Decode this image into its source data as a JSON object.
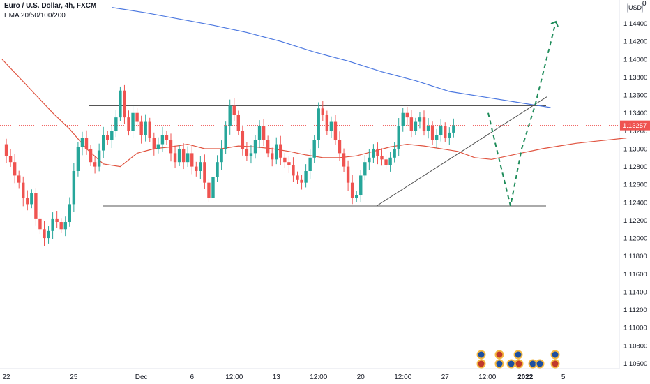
{
  "legend": {
    "symbol": "Euro / U.S. Dollar, 4h, FXCM",
    "indicator": "EMA 20/50/100/200"
  },
  "currency": "USD",
  "currency_suffix": "0",
  "last_price_label": "1.13257",
  "colors": {
    "up": "#26a69a",
    "down": "#ef5350",
    "ema_fast": "#e0533f",
    "ema_slow": "#4c78e0",
    "projection": "#1e8c5a",
    "last_price": "#ef5350",
    "lines": "#555555"
  },
  "chart_data": {
    "type": "candlestick",
    "timeframe": "4h",
    "y_ticks": [
      "1.14400",
      "1.14200",
      "1.14000",
      "1.13800",
      "1.13600",
      "1.13400",
      "1.13200",
      "1.13000",
      "1.12800",
      "1.12600",
      "1.12400",
      "1.12200",
      "1.12000",
      "1.11800",
      "1.11600",
      "1.11400",
      "1.11200",
      "1.11000",
      "1.10800",
      "1.10600"
    ],
    "ylim": [
      1.1058,
      1.146
    ],
    "x_ticks": [
      {
        "label": "22",
        "bar": 1
      },
      {
        "label": "25",
        "bar": 17
      },
      {
        "label": "Dec",
        "bar": 33
      },
      {
        "label": "6",
        "bar": 45
      },
      {
        "label": "12:00",
        "bar": 55
      },
      {
        "label": "13",
        "bar": 65
      },
      {
        "label": "12:00",
        "bar": 75
      },
      {
        "label": "20",
        "bar": 85
      },
      {
        "label": "12:00",
        "bar": 95
      },
      {
        "label": "27",
        "bar": 105
      },
      {
        "label": "12:00",
        "bar": 115
      },
      {
        "label": "2022",
        "bar": 124
      },
      {
        "label": "5",
        "bar": 133
      }
    ],
    "close_path": [
      1.1305,
      1.1292,
      1.1285,
      1.127,
      1.1262,
      1.1245,
      1.1238,
      1.125,
      1.1222,
      1.121,
      1.12,
      1.1208,
      1.1222,
      1.1218,
      1.121,
      1.1218,
      1.1238,
      1.1275,
      1.1302,
      1.1312,
      1.13,
      1.1285,
      1.128,
      1.1298,
      1.1315,
      1.131,
      1.132,
      1.1335,
      1.1365,
      1.1335,
      1.132,
      1.134,
      1.133,
      1.1315,
      1.133,
      1.1312,
      1.13,
      1.1305,
      1.1315,
      1.131,
      1.1295,
      1.1285,
      1.13,
      1.1285,
      1.1295,
      1.128,
      1.1275,
      1.1285,
      1.1262,
      1.1245,
      1.1268,
      1.1285,
      1.13,
      1.1325,
      1.1348,
      1.1338,
      1.132,
      1.13,
      1.1292,
      1.1295,
      1.131,
      1.1325,
      1.131,
      1.1295,
      1.1288,
      1.1305,
      1.129,
      1.1285,
      1.1282,
      1.127,
      1.1265,
      1.1262,
      1.1275,
      1.129,
      1.131,
      1.1345,
      1.1338,
      1.132,
      1.133,
      1.131,
      1.1295,
      1.128,
      1.1262,
      1.1245,
      1.1248,
      1.127,
      1.1285,
      1.129,
      1.13,
      1.1292,
      1.1288,
      1.1282,
      1.129,
      1.13,
      1.1325,
      1.134,
      1.1335,
      1.132,
      1.133,
      1.1335,
      1.132,
      1.1325,
      1.131,
      1.1315,
      1.1325,
      1.1312,
      1.1318,
      1.1326
    ],
    "series": [
      {
        "type": "ema",
        "role": "fast",
        "values": [
          1.14,
          1.138,
          1.136,
          1.134,
          1.1322,
          1.13,
          1.1283,
          1.128,
          1.1295,
          1.13,
          1.1302,
          1.1305,
          1.13,
          1.13,
          1.1303,
          1.1302,
          1.13,
          1.1297,
          1.1293,
          1.129,
          1.129,
          1.1292,
          1.1297,
          1.1302,
          1.1305,
          1.1303,
          1.13,
          1.1297,
          1.129,
          1.1288,
          1.1292,
          1.1296,
          1.13,
          1.1303,
          1.1306,
          1.1308,
          1.131,
          1.1312
        ],
        "x": [
          0,
          4,
          8,
          12,
          16,
          20,
          24,
          28,
          32,
          36,
          40,
          44,
          48,
          52,
          56,
          60,
          64,
          68,
          72,
          76,
          80,
          84,
          88,
          92,
          96,
          100,
          104,
          108,
          112,
          116,
          120,
          124,
          128,
          132,
          136,
          140,
          144,
          148
        ]
      },
      {
        "type": "ema",
        "role": "slow",
        "values": [
          1.1458,
          1.1452,
          1.1445,
          1.1438,
          1.143,
          1.142,
          1.1408,
          1.1398,
          1.1386,
          1.1376,
          1.1364,
          1.1358,
          1.1352,
          1.1346
        ],
        "x": [
          26,
          34,
          42,
          50,
          58,
          66,
          74,
          82,
          90,
          98,
          106,
          114,
          122,
          130
        ]
      }
    ],
    "annotations": {
      "resistance": 1.1348,
      "support": 1.1236,
      "projection": [
        1.134,
        1.13,
        1.1236,
        1.13,
        1.1348,
        1.1442
      ]
    }
  }
}
